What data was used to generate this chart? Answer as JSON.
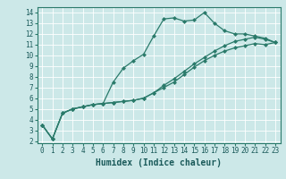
{
  "xlabel": "Humidex (Indice chaleur)",
  "bg_color": "#cce8e8",
  "grid_color": "#ffffff",
  "line_color": "#2a7a6a",
  "xlim": [
    -0.5,
    23.5
  ],
  "ylim": [
    1.8,
    14.5
  ],
  "xticks": [
    0,
    1,
    2,
    3,
    4,
    5,
    6,
    7,
    8,
    9,
    10,
    11,
    12,
    13,
    14,
    15,
    16,
    17,
    18,
    19,
    20,
    21,
    22,
    23
  ],
  "yticks": [
    2,
    3,
    4,
    5,
    6,
    7,
    8,
    9,
    10,
    11,
    12,
    13,
    14
  ],
  "line1_x": [
    0,
    1,
    2,
    3,
    4,
    5,
    6,
    7,
    8,
    9,
    10,
    11,
    12,
    13,
    14,
    15,
    16,
    17,
    18,
    19,
    20,
    21,
    22,
    23
  ],
  "line1_y": [
    3.5,
    2.2,
    4.6,
    5.0,
    5.2,
    5.4,
    5.5,
    7.5,
    8.8,
    9.5,
    10.1,
    11.8,
    13.4,
    13.5,
    13.2,
    13.3,
    14.0,
    13.0,
    12.3,
    12.0,
    12.0,
    11.8,
    11.6,
    11.2
  ],
  "line2_x": [
    0,
    1,
    2,
    3,
    4,
    5,
    6,
    7,
    8,
    9,
    10,
    11,
    12,
    13,
    14,
    15,
    16,
    17,
    18,
    19,
    20,
    21,
    22,
    23
  ],
  "line2_y": [
    3.5,
    2.2,
    4.6,
    5.0,
    5.2,
    5.4,
    5.5,
    5.6,
    5.7,
    5.8,
    6.0,
    6.5,
    7.2,
    7.8,
    8.5,
    9.2,
    9.8,
    10.4,
    10.9,
    11.3,
    11.5,
    11.7,
    11.5,
    11.2
  ],
  "line3_x": [
    0,
    1,
    2,
    3,
    4,
    5,
    6,
    7,
    8,
    9,
    10,
    11,
    12,
    13,
    14,
    15,
    16,
    17,
    18,
    19,
    20,
    21,
    22,
    23
  ],
  "line3_y": [
    3.5,
    2.2,
    4.6,
    5.0,
    5.2,
    5.4,
    5.5,
    5.6,
    5.7,
    5.8,
    6.0,
    6.5,
    7.0,
    7.5,
    8.2,
    8.9,
    9.5,
    10.0,
    10.4,
    10.7,
    10.9,
    11.1,
    11.0,
    11.2
  ],
  "tick_fontsize": 5.5,
  "xlabel_fontsize": 7,
  "marker_size": 2.5,
  "line_width": 0.9
}
